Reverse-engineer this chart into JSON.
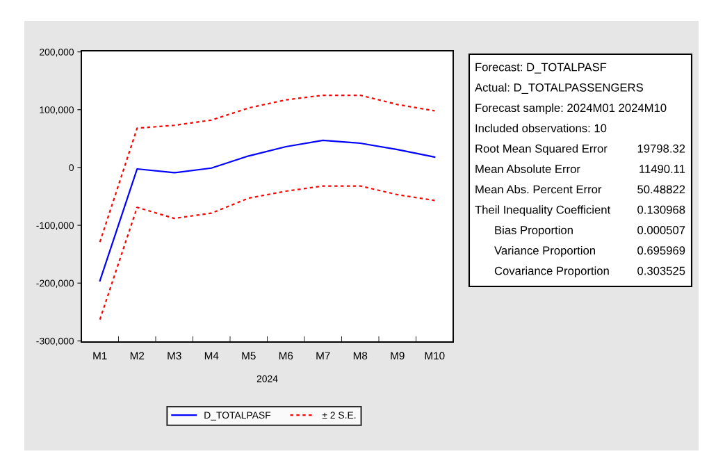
{
  "chart_data": {
    "type": "line",
    "xlabel": "2024",
    "categories": [
      "M1",
      "M2",
      "M3",
      "M4",
      "M5",
      "M6",
      "M7",
      "M8",
      "M9",
      "M10"
    ],
    "series": [
      {
        "name": "D_TOTALPASF",
        "color": "#0000ff",
        "line_style": "solid",
        "values": [
          -196000,
          -2500,
          -9000,
          -1000,
          20000,
          36000,
          47000,
          42000,
          31000,
          18000
        ]
      },
      {
        "name": "± 2 S.E.",
        "color": "#ff0000",
        "line_style": "dotted",
        "values": [
          -129000,
          68000,
          73000,
          82000,
          103000,
          117000,
          125000,
          125000,
          109000,
          98000
        ]
      },
      {
        "color": "#ff0000",
        "line_style": "dotted",
        "values": [
          -263000,
          -69000,
          -88000,
          -79000,
          -53000,
          -41000,
          -32000,
          -32000,
          -47000,
          -57000
        ]
      }
    ],
    "ylim": [
      -302000,
      202000
    ],
    "yticks": [
      {
        "value": 200000,
        "label": "200,000"
      },
      {
        "value": 100000,
        "label": "100,000"
      },
      {
        "value": 0,
        "label": "0"
      },
      {
        "value": -100000,
        "label": "-100,000"
      },
      {
        "value": -200000,
        "label": "-200,000"
      },
      {
        "value": -300000,
        "label": "-300,000"
      }
    ],
    "grid": false,
    "legend": "bottom",
    "marker": "none",
    "annotations": [
      "Forecast: D_TOTALPASF",
      "Actual: D_TOTALPASSENGERS",
      "Forecast sample: 2024M01 2024M10",
      "Included observations: 10",
      "Root Mean Squared Error 19798.32",
      "Mean Absolute Error 11490.11",
      "Mean Abs. Percent Error 50.48822",
      "Theil Inequality Coefficient 0.130968",
      "Bias Proportion 0.000507",
      "Variance Proportion 0.695969",
      "Covariance Proportion 0.303525"
    ]
  }
}
